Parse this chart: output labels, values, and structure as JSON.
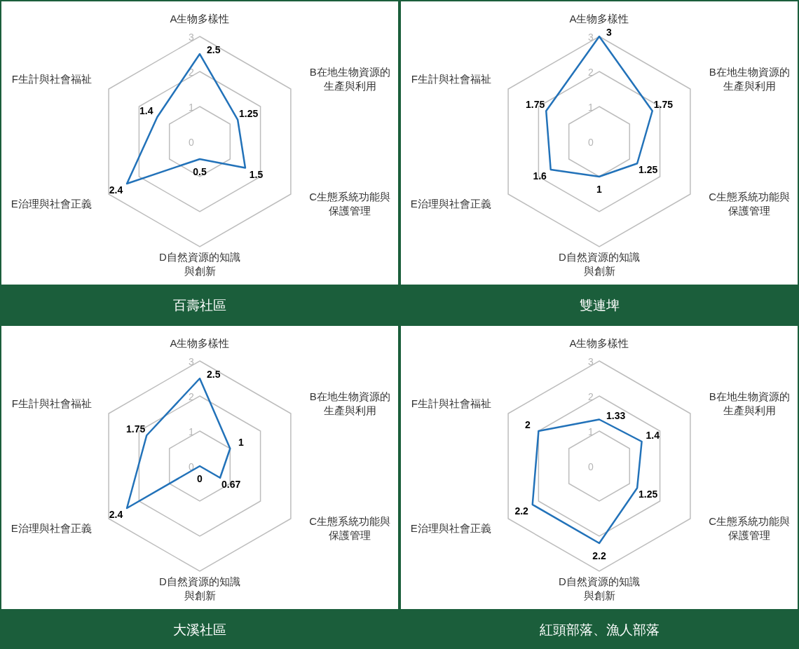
{
  "chart_data": [
    {
      "type": "radar",
      "title": "百壽社區",
      "categories": [
        "A生物多樣性",
        "B在地生物資源的生產與利用",
        "C生態系統功能與保護管理",
        "D自然資源的知識與創新",
        "E治理與社會正義",
        "F生計與社會福祉"
      ],
      "ylim": [
        0,
        3
      ],
      "yticks": [
        0,
        1,
        2,
        3
      ],
      "grid": true,
      "data_labels": true,
      "series": [
        {
          "color": "#2272b9",
          "values": [
            2.5,
            1.25,
            1.5,
            0.5,
            2.4,
            1.4
          ]
        }
      ]
    },
    {
      "type": "radar",
      "title": "雙連埤",
      "categories": [
        "A生物多樣性",
        "B在地生物資源的生產與利用",
        "C生態系統功能與保護管理",
        "D自然資源的知識與創新",
        "E治理與社會正義",
        "F生計與社會福祉"
      ],
      "ylim": [
        0,
        3
      ],
      "yticks": [
        0,
        1,
        2,
        3
      ],
      "grid": true,
      "data_labels": true,
      "series": [
        {
          "color": "#2272b9",
          "values": [
            3,
            1.75,
            1.25,
            1,
            1.6,
            1.75
          ]
        }
      ]
    },
    {
      "type": "radar",
      "title": "大溪社區",
      "categories": [
        "A生物多樣性",
        "B在地生物資源的生產與利用",
        "C生態系統功能與保護管理",
        "D自然資源的知識與創新",
        "E治理與社會正義",
        "F生計與社會福祉"
      ],
      "ylim": [
        0,
        3
      ],
      "yticks": [
        0,
        1,
        2,
        3
      ],
      "grid": true,
      "data_labels": true,
      "series": [
        {
          "color": "#2272b9",
          "values": [
            2.5,
            1,
            0.67,
            0,
            2.4,
            1.75
          ]
        }
      ]
    },
    {
      "type": "radar",
      "title": "紅頭部落、漁人部落",
      "categories": [
        "A生物多樣性",
        "B在地生物資源的生產與利用",
        "C生態系統功能與保護管理",
        "D自然資源的知識與創新",
        "E治理與社會正義",
        "F生計與社會福祉"
      ],
      "ylim": [
        0,
        3
      ],
      "yticks": [
        0,
        1,
        2,
        3
      ],
      "grid": true,
      "data_labels": true,
      "series": [
        {
          "color": "#2272b9",
          "values": [
            1.33,
            1.4,
            1.25,
            2.2,
            2.2,
            2
          ]
        }
      ]
    }
  ]
}
